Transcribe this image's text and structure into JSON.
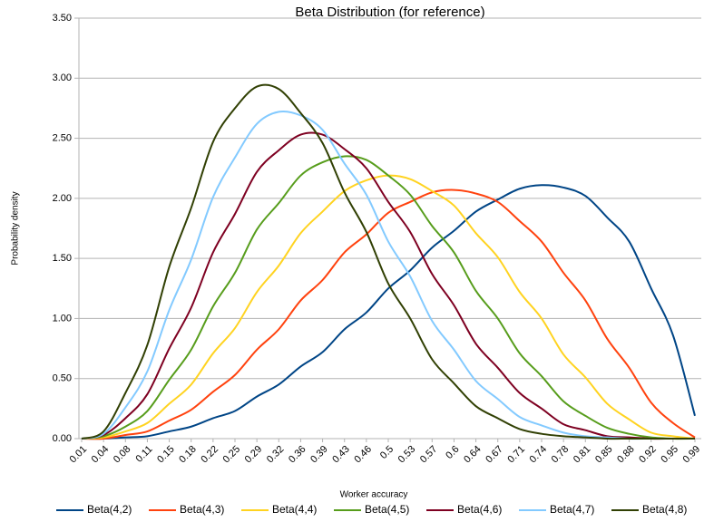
{
  "chart_data": {
    "type": "line",
    "title": "Beta Distribution (for reference)",
    "x_label": "Worker accuracy",
    "y_label": "Probability density",
    "categories": [
      "0.01",
      "0.04",
      "0.08",
      "0.11",
      "0.15",
      "0.18",
      "0.22",
      "0.25",
      "0.29",
      "0.32",
      "0.36",
      "0.39",
      "0.43",
      "0.46",
      "0.5",
      "0.53",
      "0.57",
      "0.6",
      "0.64",
      "0.67",
      "0.71",
      "0.74",
      "0.78",
      "0.81",
      "0.85",
      "0.88",
      "0.92",
      "0.95",
      "0.99"
    ],
    "ylim": [
      0,
      3.5
    ],
    "yticks": [
      {
        "value": 0,
        "label": "0.00"
      },
      {
        "value": 0.5,
        "label": "0.50"
      },
      {
        "value": 1,
        "label": "1.00"
      },
      {
        "value": 1.5,
        "label": "1.50"
      },
      {
        "value": 2,
        "label": "2.00"
      },
      {
        "value": 2.5,
        "label": "2.50"
      },
      {
        "value": 3,
        "label": "3.00"
      },
      {
        "value": 3.5,
        "label": "3.50"
      }
    ],
    "grid": true,
    "legend": "bottom",
    "series": [
      {
        "name": "Beta(4,2)",
        "color": "#004586",
        "values": [
          0,
          0,
          0.01,
          0.02,
          0.06,
          0.1,
          0.17,
          0.23,
          0.35,
          0.45,
          0.6,
          0.72,
          0.91,
          1.05,
          1.25,
          1.4,
          1.59,
          1.73,
          1.89,
          1.99,
          2.08,
          2.11,
          2.09,
          2.02,
          1.84,
          1.64,
          1.25,
          0.86,
          0.19
        ]
      },
      {
        "name": "Beta(4,3)",
        "color": "#ff420e",
        "values": [
          0,
          0,
          0.03,
          0.06,
          0.15,
          0.24,
          0.39,
          0.53,
          0.74,
          0.91,
          1.15,
          1.32,
          1.55,
          1.7,
          1.88,
          1.97,
          2.05,
          2.07,
          2.04,
          1.97,
          1.81,
          1.64,
          1.38,
          1.15,
          0.83,
          0.59,
          0.3,
          0.13,
          0.01
        ]
      },
      {
        "name": "Beta(4,4)",
        "color": "#ffd320",
        "values": [
          0,
          0.01,
          0.06,
          0.13,
          0.29,
          0.45,
          0.71,
          0.92,
          1.22,
          1.44,
          1.71,
          1.89,
          2.06,
          2.15,
          2.19,
          2.16,
          2.06,
          1.94,
          1.71,
          1.51,
          1.22,
          1,
          0.7,
          0.51,
          0.29,
          0.16,
          0.05,
          0.02,
          0
        ]
      },
      {
        "name": "Beta(4,5)",
        "color": "#579d1c",
        "values": [
          0,
          0.02,
          0.1,
          0.23,
          0.49,
          0.74,
          1.1,
          1.38,
          1.74,
          1.96,
          2.19,
          2.3,
          2.35,
          2.32,
          2.19,
          2.03,
          1.77,
          1.55,
          1.23,
          1,
          0.71,
          0.52,
          0.31,
          0.19,
          0.09,
          0.04,
          0.01,
          0,
          0
        ]
      },
      {
        "name": "Beta(4,6)",
        "color": "#7e0021",
        "values": [
          0,
          0.03,
          0.17,
          0.37,
          0.75,
          1.09,
          1.55,
          1.87,
          2.22,
          2.4,
          2.53,
          2.53,
          2.41,
          2.25,
          1.97,
          1.72,
          1.37,
          1.11,
          0.79,
          0.59,
          0.38,
          0.25,
          0.12,
          0.07,
          0.02,
          0.01,
          0,
          0,
          0
        ]
      },
      {
        "name": "Beta(4,7)",
        "color": "#83caff",
        "values": [
          0,
          0.04,
          0.26,
          0.56,
          1.07,
          1.49,
          2.01,
          2.34,
          2.62,
          2.72,
          2.69,
          2.57,
          2.29,
          2.03,
          1.64,
          1.35,
          0.98,
          0.74,
          0.48,
          0.33,
          0.18,
          0.11,
          0.05,
          0.02,
          0.01,
          0,
          0,
          0,
          0
        ]
      },
      {
        "name": "Beta(4,8)",
        "color": "#314004",
        "values": [
          0,
          0.06,
          0.38,
          0.78,
          1.43,
          1.92,
          2.47,
          2.75,
          2.93,
          2.91,
          2.71,
          2.46,
          2.05,
          1.72,
          1.29,
          1,
          0.66,
          0.46,
          0.27,
          0.17,
          0.08,
          0.04,
          0.02,
          0.01,
          0,
          0,
          0,
          0,
          0
        ]
      }
    ]
  }
}
